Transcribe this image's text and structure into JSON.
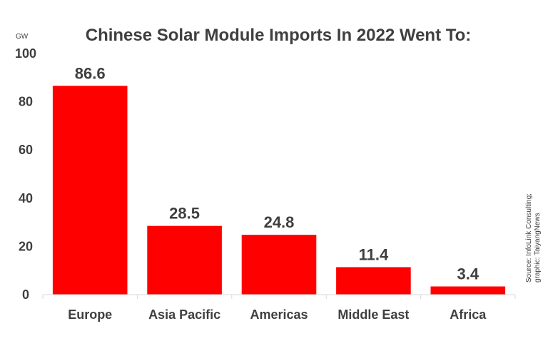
{
  "chart_data": {
    "type": "bar",
    "title": "Chinese Solar Module Imports In 2022 Went To:",
    "unit": "GW",
    "categories": [
      "Europe",
      "Asia Pacific",
      "Americas",
      "Middle East",
      "Africa"
    ],
    "values": [
      86.6,
      28.5,
      24.8,
      11.4,
      3.4
    ],
    "value_labels": [
      "86.6",
      "28.5",
      "24.8",
      "11.4",
      "3.4"
    ],
    "ylim": [
      0,
      100
    ],
    "yticks": [
      0,
      20,
      40,
      60,
      80,
      100
    ],
    "gridlines": false,
    "legend": "none",
    "bar_color": "#ff0000",
    "text_color": "#3f3f3f"
  },
  "source_note": {
    "line1": "Source: InfoLink Consulting;",
    "line2": "graphic: TaiyangNews"
  }
}
